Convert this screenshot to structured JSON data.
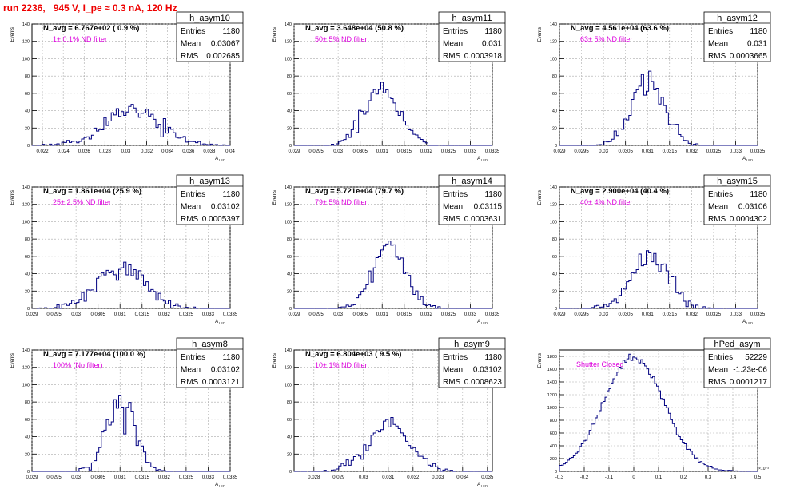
{
  "page": {
    "title": "run 2236,   945 V, I_pe ≈ 0.3 nA, 120 Hz",
    "background": "#ffffff",
    "hist_color": "#000080",
    "note_color": "#dd00dd",
    "title_color": "#ee0000",
    "grid_color": "#aaaaaa"
  },
  "chart_data": [
    {
      "type": "bar",
      "name": "h_asym10",
      "title": "h_asym10",
      "avg_label": "N_avg = 6.767e+02 ( 0.9 %)",
      "note": "1± 0.1% ND filter",
      "stats": [
        {
          "label": "Entries",
          "value": "1180"
        },
        {
          "label": "Mean",
          "value": "0.03067"
        },
        {
          "label": "RMS",
          "value": "0.002685"
        }
      ],
      "ylabel": "Events",
      "xlabel": "A_{LED}",
      "xlim": [
        0.021,
        0.04
      ],
      "ylim": [
        0,
        140
      ],
      "xticks": [
        "0.022",
        "0.024",
        "0.026",
        "0.028",
        "0.03",
        "0.032",
        "0.034",
        "0.036",
        "0.038",
        "0.04"
      ],
      "yticks": [
        "0",
        "20",
        "40",
        "60",
        "80",
        "100",
        "120",
        "140"
      ],
      "grid": true,
      "mean": 0.03067,
      "rms": 0.002685,
      "entries": 1180
    },
    {
      "type": "bar",
      "name": "h_asym11",
      "title": "h_asym11",
      "avg_label": "N_avg = 3.648e+04 (50.8 %)",
      "note": "50± 5% ND filter",
      "stats": [
        {
          "label": "Entries",
          "value": "1180"
        },
        {
          "label": "Mean",
          "value": "0.031"
        },
        {
          "label": "RMS",
          "value": "0.0003918"
        }
      ],
      "ylabel": "Events",
      "xlabel": "A_{LED}",
      "xlim": [
        0.029,
        0.0335
      ],
      "ylim": [
        0,
        140
      ],
      "xticks": [
        "0.029",
        "0.0295",
        "0.03",
        "0.0305",
        "0.031",
        "0.0315",
        "0.032",
        "0.0325",
        "0.033",
        "0.0335"
      ],
      "yticks": [
        "0",
        "20",
        "40",
        "60",
        "80",
        "100",
        "120",
        "140"
      ],
      "grid": true,
      "mean": 0.031,
      "rms": 0.0003918,
      "entries": 1180
    },
    {
      "type": "bar",
      "name": "h_asym12",
      "title": "h_asym12",
      "avg_label": "N_avg = 4.561e+04 (63.6 %)",
      "note": "63± 5% ND filter",
      "stats": [
        {
          "label": "Entries",
          "value": "1180"
        },
        {
          "label": "Mean",
          "value": "0.031"
        },
        {
          "label": "RMS",
          "value": "0.0003665"
        }
      ],
      "ylabel": "Events",
      "xlabel": "A_{LED}",
      "xlim": [
        0.029,
        0.0335
      ],
      "ylim": [
        0,
        140
      ],
      "xticks": [
        "0.029",
        "0.0295",
        "0.03",
        "0.0305",
        "0.031",
        "0.0315",
        "0.032",
        "0.0325",
        "0.033",
        "0.0335"
      ],
      "yticks": [
        "0",
        "20",
        "40",
        "60",
        "80",
        "100",
        "120",
        "140"
      ],
      "grid": true,
      "mean": 0.031,
      "rms": 0.0003665,
      "entries": 1180
    },
    {
      "type": "bar",
      "name": "h_asym13",
      "title": "h_asym13",
      "avg_label": "N_avg = 1.861e+04 (25.9 %)",
      "note": "25± 2.5% ND filter",
      "stats": [
        {
          "label": "Entries",
          "value": "1180"
        },
        {
          "label": "Mean",
          "value": "0.03102"
        },
        {
          "label": "RMS",
          "value": "0.0005397"
        }
      ],
      "ylabel": "Events",
      "xlabel": "A_{LED}",
      "xlim": [
        0.029,
        0.0335
      ],
      "ylim": [
        0,
        140
      ],
      "xticks": [
        "0.029",
        "0.0295",
        "0.03",
        "0.0305",
        "0.031",
        "0.0315",
        "0.032",
        "0.0325",
        "0.033",
        "0.0335"
      ],
      "yticks": [
        "0",
        "20",
        "40",
        "60",
        "80",
        "100",
        "120",
        "140"
      ],
      "grid": true,
      "mean": 0.03102,
      "rms": 0.0005397,
      "entries": 1180
    },
    {
      "type": "bar",
      "name": "h_asym14",
      "title": "h_asym14",
      "avg_label": "N_avg = 5.721e+04 (79.7 %)",
      "note": "79± 5% ND filter",
      "stats": [
        {
          "label": "Entries",
          "value": "1180"
        },
        {
          "label": "Mean",
          "value": "0.03115"
        },
        {
          "label": "RMS",
          "value": "0.0003631"
        }
      ],
      "ylabel": "Events",
      "xlabel": "A_{LED}",
      "xlim": [
        0.029,
        0.0335
      ],
      "ylim": [
        0,
        140
      ],
      "xticks": [
        "0.029",
        "0.0295",
        "0.03",
        "0.0305",
        "0.031",
        "0.0315",
        "0.032",
        "0.0325",
        "0.033",
        "0.0335"
      ],
      "yticks": [
        "0",
        "20",
        "40",
        "60",
        "80",
        "100",
        "120",
        "140"
      ],
      "grid": true,
      "mean": 0.03115,
      "rms": 0.0003631,
      "entries": 1180
    },
    {
      "type": "bar",
      "name": "h_asym15",
      "title": "h_asym15",
      "avg_label": "N_avg = 2.900e+04 (40.4 %)",
      "note": "40± 4% ND filter",
      "stats": [
        {
          "label": "Entries",
          "value": "1180"
        },
        {
          "label": "Mean",
          "value": "0.03106"
        },
        {
          "label": "RMS",
          "value": "0.0004302"
        }
      ],
      "ylabel": "Events",
      "xlabel": "A_{LED}",
      "xlim": [
        0.029,
        0.0335
      ],
      "ylim": [
        0,
        140
      ],
      "xticks": [
        "0.029",
        "0.0295",
        "0.03",
        "0.0305",
        "0.031",
        "0.0315",
        "0.032",
        "0.0325",
        "0.033",
        "0.0335"
      ],
      "yticks": [
        "0",
        "20",
        "40",
        "60",
        "80",
        "100",
        "120",
        "140"
      ],
      "grid": true,
      "mean": 0.03106,
      "rms": 0.0004302,
      "entries": 1180
    },
    {
      "type": "bar",
      "name": "h_asym8",
      "title": "h_asym8",
      "avg_label": "N_avg = 7.177e+04 (100.0 %)",
      "note": "100% (No filter)",
      "stats": [
        {
          "label": "Entries",
          "value": "1180"
        },
        {
          "label": "Mean",
          "value": "0.03102"
        },
        {
          "label": "RMS",
          "value": "0.0003121"
        }
      ],
      "ylabel": "Events",
      "xlabel": "A_{LED}",
      "xlim": [
        0.029,
        0.0335
      ],
      "ylim": [
        0,
        140
      ],
      "xticks": [
        "0.029",
        "0.0295",
        "0.03",
        "0.0305",
        "0.031",
        "0.0315",
        "0.032",
        "0.0325",
        "0.033",
        "0.0335"
      ],
      "yticks": [
        "0",
        "20",
        "40",
        "60",
        "80",
        "100",
        "120",
        "140"
      ],
      "grid": true,
      "mean": 0.03102,
      "rms": 0.0003121,
      "entries": 1180
    },
    {
      "type": "bar",
      "name": "h_asym9",
      "title": "h_asym9",
      "avg_label": "N_avg = 6.804e+03 ( 9.5 %)",
      "note": "10± 1% ND filter",
      "stats": [
        {
          "label": "Entries",
          "value": "1180"
        },
        {
          "label": "Mean",
          "value": "0.03102"
        },
        {
          "label": "RMS",
          "value": "0.0008623"
        }
      ],
      "ylabel": "Events",
      "xlabel": "A_{LED}",
      "xlim": [
        0.0272,
        0.0352
      ],
      "ylim": [
        0,
        140
      ],
      "xticks": [
        "0.028",
        "0.029",
        "0.03",
        "0.031",
        "0.032",
        "0.033",
        "0.034",
        "0.035"
      ],
      "yticks": [
        "0",
        "20",
        "40",
        "60",
        "80",
        "100",
        "120",
        "140"
      ],
      "grid": true,
      "mean": 0.03102,
      "rms": 0.0008623,
      "entries": 1180
    },
    {
      "type": "bar",
      "name": "hPed_asym",
      "title": "hPed_asym",
      "avg_label": "",
      "note": "Shutter Closed",
      "stats": [
        {
          "label": "Entries",
          "value": "52229"
        },
        {
          "label": "Mean",
          "value": "-1.23e-06"
        },
        {
          "label": "RMS",
          "value": "0.0001217"
        }
      ],
      "ylabel": "Events",
      "xlabel": "",
      "exponent_label": "×10⁻³",
      "xlim": [
        -0.3,
        0.5
      ],
      "ylim": [
        0,
        1900
      ],
      "xticks": [
        "-0.3",
        "-0.2",
        "-0.1",
        "0",
        "0.1",
        "0.2",
        "0.3",
        "0.4",
        "0.5"
      ],
      "yticks": [
        "0",
        "200",
        "400",
        "600",
        "800",
        "1000",
        "1200",
        "1400",
        "1600",
        "1800"
      ],
      "grid": true,
      "mean": 0.0,
      "rms": 0.1217,
      "entries": 52229,
      "peak": 1780
    }
  ]
}
